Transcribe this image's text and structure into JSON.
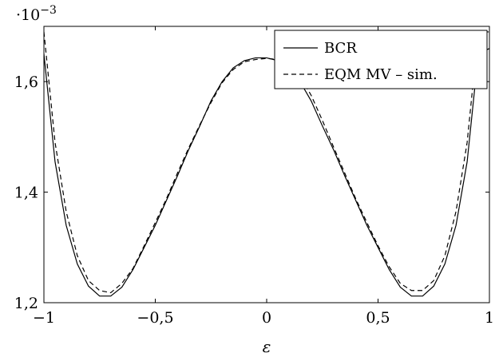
{
  "chart_data": {
    "type": "line",
    "xlabel": "ε",
    "ylabel": "",
    "xlim": [
      -1,
      1
    ],
    "ylim": [
      1.2,
      1.7
    ],
    "y_scale_factor": "·10",
    "y_scale_exponent": "−3",
    "x_ticks": [
      {
        "value": -1,
        "label": "−1"
      },
      {
        "value": -0.5,
        "label": "−0,5"
      },
      {
        "value": 0,
        "label": "0"
      },
      {
        "value": 0.5,
        "label": "0,5"
      },
      {
        "value": 1,
        "label": "1"
      }
    ],
    "y_ticks": [
      {
        "value": 1.2,
        "label": "1,2"
      },
      {
        "value": 1.4,
        "label": "1,4"
      },
      {
        "value": 1.6,
        "label": "1,6"
      }
    ],
    "grid": false,
    "legend_position": "top-right",
    "series": [
      {
        "name": "BCR",
        "style": "solid",
        "color": "#000000",
        "x": [
          -1,
          -0.95,
          -0.9,
          -0.85,
          -0.8,
          -0.75,
          -0.7,
          -0.65,
          -0.6,
          -0.55,
          -0.5,
          -0.45,
          -0.4,
          -0.35,
          -0.3,
          -0.25,
          -0.2,
          -0.15,
          -0.1,
          -0.05,
          0,
          0.05,
          0.1,
          0.15,
          0.2,
          0.25,
          0.3,
          0.35,
          0.4,
          0.45,
          0.5,
          0.55,
          0.6,
          0.65,
          0.7,
          0.75,
          0.8,
          0.85,
          0.9,
          0.95,
          1
        ],
        "y": [
          1.65,
          1.455,
          1.34,
          1.27,
          1.23,
          1.212,
          1.212,
          1.228,
          1.26,
          1.3,
          1.34,
          1.385,
          1.43,
          1.477,
          1.52,
          1.565,
          1.6,
          1.625,
          1.638,
          1.643,
          1.643,
          1.638,
          1.625,
          1.6,
          1.565,
          1.52,
          1.477,
          1.43,
          1.385,
          1.34,
          1.3,
          1.26,
          1.228,
          1.212,
          1.212,
          1.23,
          1.27,
          1.34,
          1.455,
          1.65,
          1.66
        ]
      },
      {
        "name": "EQM MV – sim.",
        "style": "dashed",
        "color": "#000000",
        "x": [
          -1,
          -0.95,
          -0.9,
          -0.85,
          -0.8,
          -0.75,
          -0.7,
          -0.65,
          -0.6,
          -0.55,
          -0.5,
          -0.45,
          -0.4,
          -0.35,
          -0.3,
          -0.25,
          -0.2,
          -0.15,
          -0.1,
          -0.05,
          0,
          0.05,
          0.1,
          0.15,
          0.2,
          0.25,
          0.3,
          0.35,
          0.4,
          0.45,
          0.5,
          0.55,
          0.6,
          0.65,
          0.7,
          0.75,
          0.8,
          0.85,
          0.9,
          0.95,
          1
        ],
        "y": [
          1.69,
          1.49,
          1.365,
          1.285,
          1.24,
          1.222,
          1.218,
          1.235,
          1.262,
          1.303,
          1.345,
          1.388,
          1.435,
          1.48,
          1.522,
          1.562,
          1.598,
          1.622,
          1.636,
          1.64,
          1.642,
          1.64,
          1.632,
          1.61,
          1.575,
          1.53,
          1.482,
          1.435,
          1.388,
          1.345,
          1.303,
          1.265,
          1.235,
          1.222,
          1.222,
          1.24,
          1.285,
          1.365,
          1.49,
          1.69,
          1.69
        ]
      }
    ]
  }
}
